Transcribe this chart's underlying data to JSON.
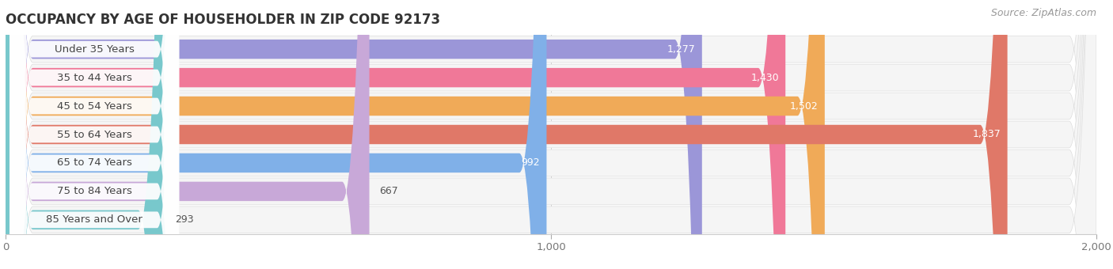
{
  "title": "OCCUPANCY BY AGE OF HOUSEHOLDER IN ZIP CODE 92173",
  "source": "Source: ZipAtlas.com",
  "categories": [
    "Under 35 Years",
    "35 to 44 Years",
    "45 to 54 Years",
    "55 to 64 Years",
    "65 to 74 Years",
    "75 to 84 Years",
    "85 Years and Over"
  ],
  "values": [
    1277,
    1430,
    1502,
    1837,
    992,
    667,
    293
  ],
  "bar_colors": [
    "#9b96d8",
    "#f07898",
    "#f0aa58",
    "#e07868",
    "#80b0e8",
    "#c8a8d8",
    "#78c8cc"
  ],
  "bar_bg_color": "#eeeeee",
  "row_bg_color": "#f5f5f5",
  "background_color": "#ffffff",
  "xlim_max": 2000,
  "xticks": [
    0,
    1000,
    2000
  ],
  "title_fontsize": 12,
  "label_fontsize": 9.5,
  "value_fontsize": 9,
  "source_fontsize": 9
}
